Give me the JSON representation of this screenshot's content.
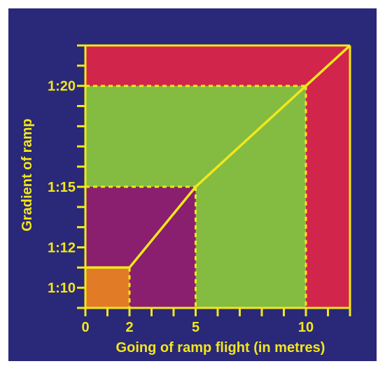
{
  "chart_data": {
    "type": "area",
    "title": "",
    "xlabel": "Going of ramp flight (in metres)",
    "ylabel": "Gradient of ramp",
    "x_ticks": [
      0,
      1,
      2,
      3,
      4,
      5,
      6,
      7,
      8,
      9,
      10,
      11,
      12
    ],
    "x_tick_labels": [
      {
        "x": 0,
        "label": "0"
      },
      {
        "x": 2,
        "label": "2"
      },
      {
        "x": 5,
        "label": "5"
      },
      {
        "x": 10,
        "label": "10"
      }
    ],
    "xlim": [
      0,
      12
    ],
    "y_axis_ratio_denominators": [
      9,
      10,
      11,
      12,
      13,
      14,
      15,
      16,
      17,
      18,
      19,
      20,
      21,
      22
    ],
    "y_tick_labels": [
      {
        "gradient_denominator": 10,
        "label": "1:10"
      },
      {
        "gradient_denominator": 12,
        "label": "1:12"
      },
      {
        "gradient_denominator": 15,
        "label": "1:15"
      },
      {
        "gradient_denominator": 20,
        "label": "1:20"
      }
    ],
    "limit_line": {
      "name": "",
      "points": [
        {
          "going_m": 0,
          "gradient_denominator": 11
        },
        {
          "going_m": 2,
          "gradient_denominator": 11
        },
        {
          "going_m": 5,
          "gradient_denominator": 15
        },
        {
          "going_m": 10,
          "gradient_denominator": 20
        },
        {
          "going_m": 12,
          "gradient_denominator": 22
        }
      ]
    },
    "zones": [
      {
        "x_range": [
          0,
          2
        ],
        "gradient_range": [
          9,
          11
        ],
        "color": "#e27b26"
      },
      {
        "x_range": [
          0,
          5
        ],
        "gradient_range": [
          9,
          15
        ],
        "color": "#8a1e6f"
      },
      {
        "x_range": [
          0,
          10
        ],
        "gradient_range": [
          9,
          20
        ],
        "color": "#84bb41"
      },
      {
        "x_range": [
          0,
          12
        ],
        "gradient_range": [
          9,
          22
        ],
        "color": "#d2254b"
      }
    ],
    "dashed_guides": [
      {
        "going_m": 2,
        "gradient_denominator": 11
      },
      {
        "going_m": 5,
        "gradient_denominator": 15
      },
      {
        "going_m": 10,
        "gradient_denominator": 20
      }
    ],
    "colors": {
      "background": "#2a2878",
      "border": "#ffffff",
      "accent": "#f2e71b"
    },
    "grid": false
  }
}
